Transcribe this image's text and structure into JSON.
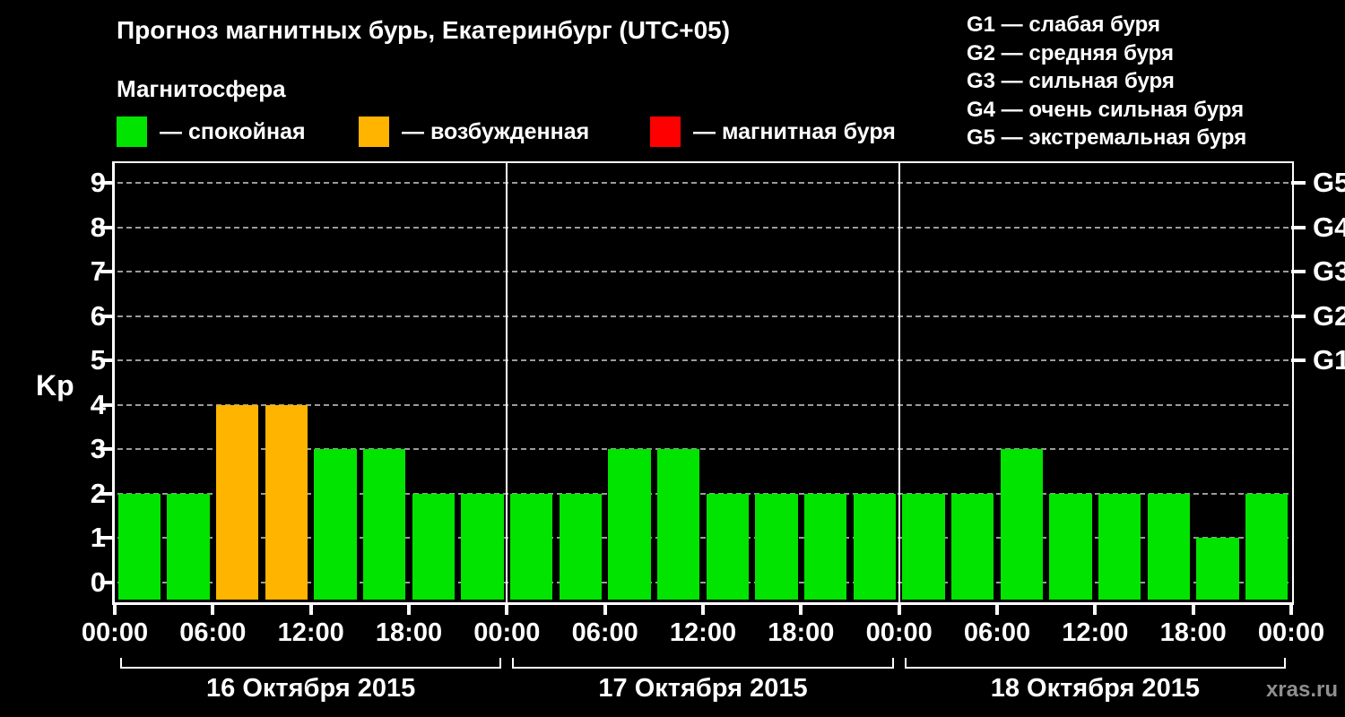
{
  "header": {
    "title": "Прогноз магнитных бурь, Екатеринбург (UTC+05)"
  },
  "legend": {
    "title": "Магнитосфера",
    "items": [
      {
        "key": "quiet",
        "label": "— спокойная",
        "color": "#00e400"
      },
      {
        "key": "excited",
        "label": "— возбужденная",
        "color": "#ffb400"
      },
      {
        "key": "storm",
        "label": "— магнитная буря",
        "color": "#ff0000"
      }
    ]
  },
  "g_legend": {
    "items": [
      "G1 — слабая буря",
      "G2 — средняя буря",
      "G3 — сильная буря",
      "G4 — очень сильная буря",
      "G5 — экстремальная буря"
    ]
  },
  "footer": {
    "watermark": "xras.ru"
  },
  "chart_data": {
    "type": "bar",
    "title": "Прогноз магнитных бурь, Екатеринбург (UTC+05)",
    "ylabel": "Kp",
    "ylim": [
      0,
      9
    ],
    "yticks": [
      0,
      1,
      2,
      3,
      4,
      5,
      6,
      7,
      8,
      9
    ],
    "grid": "dashed-horizontal",
    "hours_per_bar": 3,
    "x_tick_labels": [
      "00:00",
      "06:00",
      "12:00",
      "18:00"
    ],
    "x_final_label": "00:00",
    "right_axis_labels": [
      {
        "value": 5,
        "label": "G1"
      },
      {
        "value": 6,
        "label": "G2"
      },
      {
        "value": 7,
        "label": "G3"
      },
      {
        "value": 8,
        "label": "G4"
      },
      {
        "value": 9,
        "label": "G5"
      }
    ],
    "level_colors": {
      "quiet": "#00e400",
      "excited": "#ffb400",
      "storm": "#ff0000"
    },
    "thresholds": {
      "excited_min": 4,
      "storm_min": 5
    },
    "days": [
      {
        "date": "16 Октября 2015",
        "kp_values": [
          2,
          2,
          4,
          4,
          3,
          3,
          2,
          2
        ]
      },
      {
        "date": "17 Октября 2015",
        "kp_values": [
          2,
          2,
          3,
          3,
          2,
          2,
          2,
          2
        ]
      },
      {
        "date": "18 Октября 2015",
        "kp_values": [
          2,
          2,
          3,
          2,
          2,
          2,
          1,
          2
        ]
      }
    ]
  }
}
